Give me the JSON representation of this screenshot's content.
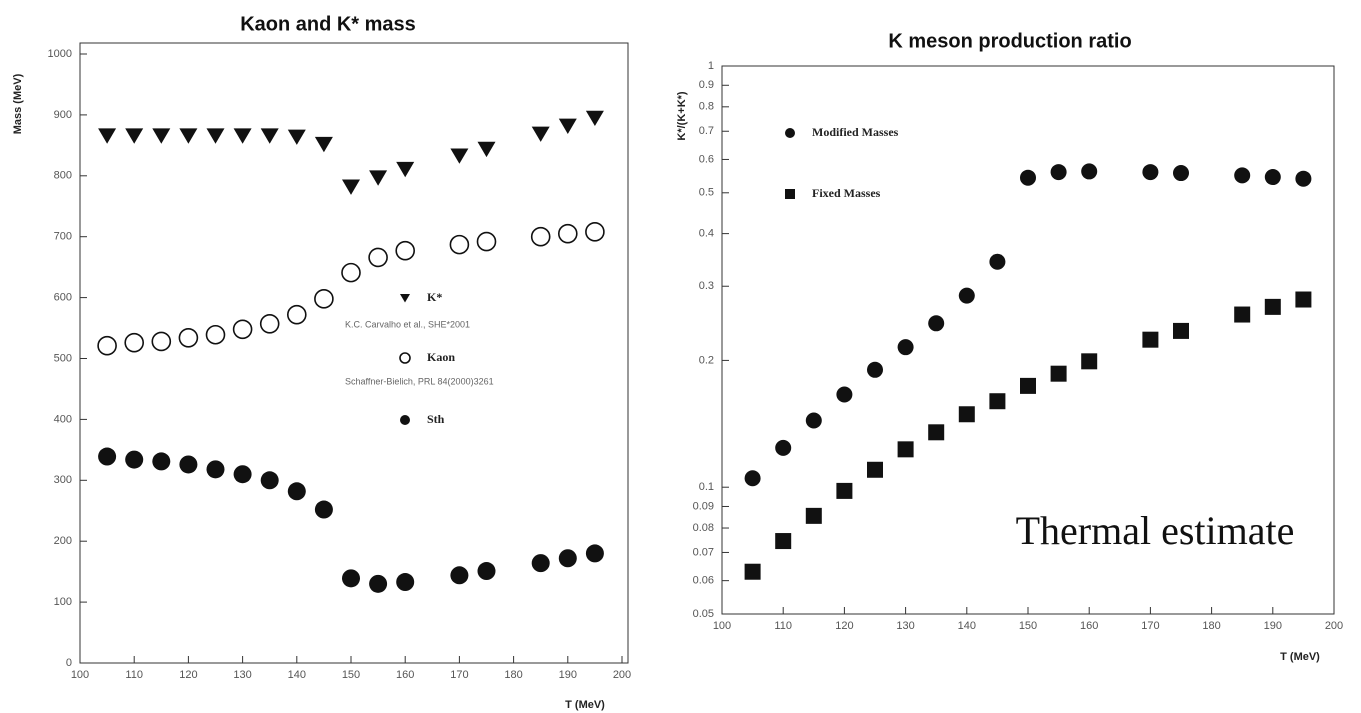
{
  "chart_data": [
    {
      "type": "scatter",
      "title": "Kaon and K* mass",
      "xlabel": "T (MeV)",
      "ylabel": "Mass (MeV)",
      "x": [
        105,
        110,
        115,
        120,
        125,
        130,
        135,
        140,
        145,
        150,
        155,
        160,
        170,
        175,
        185,
        190,
        195
      ],
      "series": [
        {
          "name": "K*",
          "color": "#111111",
          "marker": "triangle-down",
          "values": [
            866,
            866,
            866,
            866,
            866,
            866,
            866,
            864,
            852,
            782,
            797,
            811,
            833,
            844,
            869,
            882,
            895
          ]
        },
        {
          "name": "Kaon",
          "color": "#111111",
          "marker": "circle-open",
          "values": [
            521,
            526,
            528,
            534,
            539,
            548,
            557,
            572,
            598,
            641,
            666,
            677,
            687,
            692,
            700,
            705,
            708
          ]
        },
        {
          "name": "Sth",
          "color": "#111111",
          "marker": "circle",
          "values": [
            339,
            334,
            331,
            326,
            318,
            310,
            300,
            282,
            252,
            139,
            130,
            133,
            144,
            151,
            164,
            172,
            180
          ]
        }
      ],
      "annotations": [
        "K.C. Carvalho et al., SHE*2001",
        "Schaffner-Bielich, PRL 84(2000)3261"
      ],
      "xlim": [
        100,
        200
      ],
      "xticks": [
        100,
        110,
        120,
        130,
        140,
        150,
        160,
        170,
        180,
        190,
        200
      ],
      "ylim": [
        0,
        1000
      ],
      "yticks": [
        0,
        100,
        200,
        300,
        400,
        500,
        600,
        700,
        800,
        900,
        1000
      ]
    },
    {
      "type": "scatter",
      "title": "K meson production ratio",
      "xlabel": "T (MeV)",
      "ylabel": "K*/(K+K*)",
      "yscale": "log",
      "x": [
        105,
        110,
        115,
        120,
        125,
        130,
        135,
        140,
        145,
        150,
        155,
        160,
        170,
        175,
        185,
        190,
        195
      ],
      "series": [
        {
          "name": "Modified Masses",
          "color": "#111111",
          "marker": "circle",
          "values": [
            0.105,
            0.124,
            0.144,
            0.166,
            0.19,
            0.215,
            0.245,
            0.285,
            0.343,
            0.543,
            0.56,
            0.562,
            0.56,
            0.557,
            0.55,
            0.545,
            0.54
          ]
        },
        {
          "name": "Fixed Masses",
          "color": "#111111",
          "marker": "square",
          "values": [
            0.063,
            0.0745,
            0.0855,
            0.098,
            0.11,
            0.123,
            0.135,
            0.149,
            0.16,
            0.174,
            0.186,
            0.199,
            0.224,
            0.235,
            0.257,
            0.268,
            0.279
          ]
        }
      ],
      "annotations": [
        "Thermal estimate"
      ],
      "xlim": [
        100,
        200
      ],
      "xticks": [
        100,
        110,
        120,
        130,
        140,
        150,
        160,
        170,
        180,
        190,
        200
      ],
      "ylim": [
        0.05,
        1
      ],
      "yticks": [
        0.05,
        0.06,
        0.07,
        0.08,
        0.09,
        0.1,
        0.2,
        0.3,
        0.4,
        0.5,
        0.6,
        0.7,
        0.8,
        0.9,
        1
      ]
    }
  ]
}
